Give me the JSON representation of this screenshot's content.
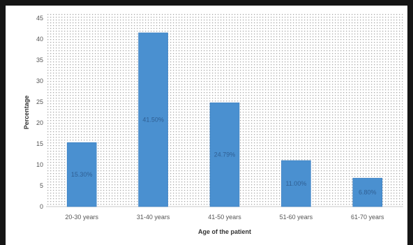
{
  "chart_data": {
    "type": "bar",
    "categories": [
      "20-30 years",
      "31-40 years",
      "41-50 years",
      "51-60 years",
      "61-70 years"
    ],
    "values": [
      15.3,
      41.5,
      24.8,
      11.0,
      6.8
    ],
    "data_labels": [
      "15.30%",
      "41.50%",
      "24.79%",
      "11.00%",
      "6.80%"
    ],
    "xlabel": "Age of the patient",
    "ylabel": "Percentage",
    "ylim": [
      0,
      45
    ],
    "yticks": [
      0,
      5,
      10,
      15,
      20,
      25,
      30,
      35,
      40,
      45
    ],
    "grid": "dotted background",
    "legend": "none",
    "colors": {
      "bar": "#4a90d0",
      "bar_edge": "#3a7cbf",
      "label": "#2f5f93",
      "frame": "#151515"
    }
  }
}
